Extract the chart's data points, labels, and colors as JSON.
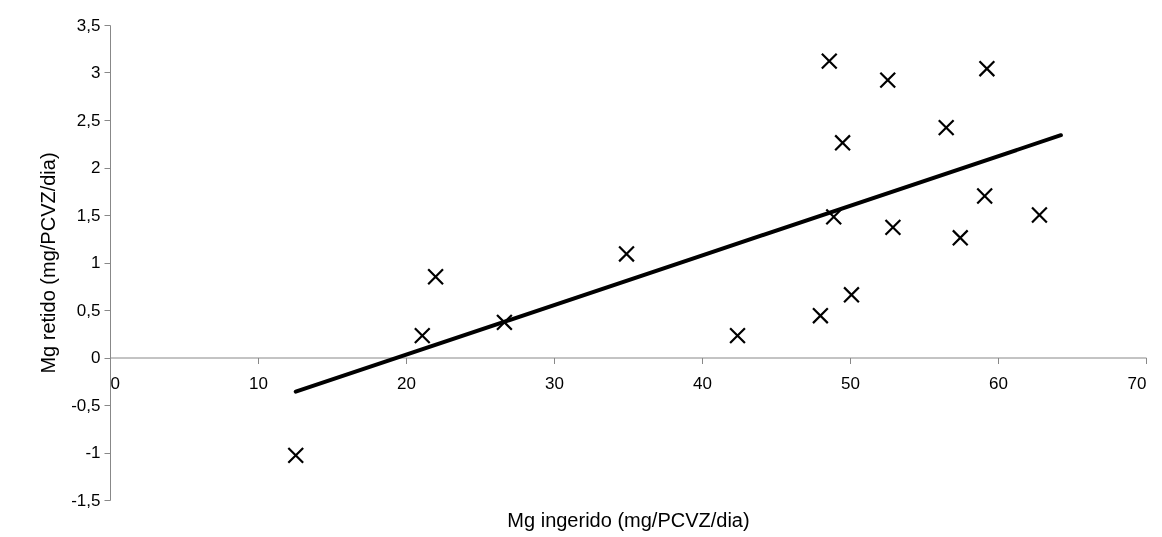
{
  "chart_data": {
    "type": "scatter",
    "xlabel": "Mg ingerido (mg/PCVZ/dia)",
    "ylabel": "Mg retido (mg/PCVZ/dia)",
    "xlim": [
      0,
      70
    ],
    "xticks": [
      0,
      10,
      20,
      30,
      40,
      50,
      60,
      70
    ],
    "ylim": [
      -1.5,
      3.5
    ],
    "yticks": [
      {
        "value": -1.5,
        "label": "-1,5"
      },
      {
        "value": -1,
        "label": "-1"
      },
      {
        "value": -0.5,
        "label": "-0,5"
      },
      0,
      {
        "value": 0.5,
        "label": "0,5"
      },
      1,
      {
        "value": 1.5,
        "label": "1,5"
      },
      2,
      {
        "value": 2.5,
        "label": "2,5"
      },
      3,
      {
        "value": 3.5,
        "label": "3,5"
      }
    ],
    "grid": false,
    "series": [
      {
        "marker": "cross",
        "color": "#000000",
        "x": [
          12.55,
          21.1,
          22.0,
          26.65,
          34.9,
          42.4,
          48.0,
          50.1,
          48.6,
          52.55,
          59.25,
          56.5,
          49.5,
          59.1,
          48.9,
          52.9,
          57.45,
          62.8
        ],
        "values": [
          -1.03,
          0.23,
          0.85,
          0.37,
          1.09,
          0.23,
          0.44,
          0.66,
          3.12,
          2.92,
          3.04,
          2.42,
          2.26,
          1.7,
          1.48,
          1.37,
          1.26,
          1.5
        ]
      },
      {
        "type": "line",
        "color": "#000000",
        "x": [
          12.55,
          64.25
        ],
        "values": [
          -0.36,
          2.34
        ]
      }
    ]
  }
}
